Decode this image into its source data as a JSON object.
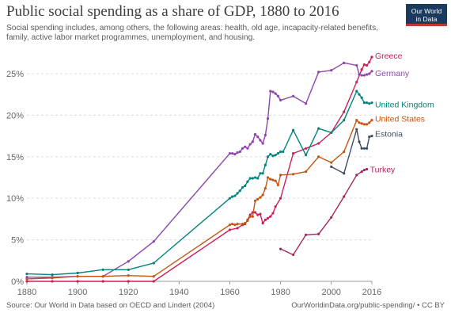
{
  "header": {
    "title": "Public social spending as a share of GDP, 1880 to 2016",
    "subtitle": "Social spending includes, among others, the following areas: health, old age, incapacity-related benefits, family, active labor market programmes, unemployment, and housing.",
    "logo_line1": "Our World",
    "logo_line2": "in Data"
  },
  "footer": {
    "source": "Source: Our World in Data based on OECD and Lindert (2004)",
    "license": "OurWorldinData.org/public-spending/ • CC BY"
  },
  "chart_data": {
    "type": "line",
    "title": "Public social spending as a share of GDP, 1880 to 2016",
    "xlabel": "",
    "ylabel": "",
    "xlim": [
      1880,
      2016
    ],
    "ylim": [
      0,
      27
    ],
    "x_ticks": [
      1880,
      1900,
      1920,
      1940,
      1960,
      1980,
      2000,
      2016
    ],
    "y_ticks": [
      0,
      5,
      10,
      15,
      20,
      25
    ],
    "y_tick_suffix": "%",
    "grid": "horizontal",
    "legend": "inline labels at line ends (right)",
    "series": [
      {
        "name": "Greece",
        "color": "#cc1f59",
        "points": [
          [
            1880,
            0
          ],
          [
            1890,
            0
          ],
          [
            1900,
            0
          ],
          [
            1910,
            0
          ],
          [
            1920,
            0
          ],
          [
            1930,
            0
          ],
          [
            1960,
            6.2
          ],
          [
            1963,
            6.4
          ],
          [
            1965,
            6.8
          ],
          [
            1966,
            6.9
          ],
          [
            1967,
            7.4
          ],
          [
            1968,
            8.0
          ],
          [
            1969,
            8.3
          ],
          [
            1970,
            8.3
          ],
          [
            1971,
            8.0
          ],
          [
            1972,
            8.1
          ],
          [
            1973,
            7.0
          ],
          [
            1974,
            7.4
          ],
          [
            1975,
            7.6
          ],
          [
            1976,
            7.8
          ],
          [
            1977,
            8.2
          ],
          [
            1978,
            9.0
          ],
          [
            1980,
            10.0
          ],
          [
            1985,
            15.4
          ],
          [
            1990,
            16.0
          ],
          [
            1995,
            16.6
          ],
          [
            2000,
            17.9
          ],
          [
            2005,
            20.4
          ],
          [
            2010,
            24.0
          ],
          [
            2012,
            25.5
          ],
          [
            2013,
            26.1
          ],
          [
            2014,
            26.0
          ],
          [
            2015,
            26.4
          ],
          [
            2016,
            27.0
          ]
        ]
      },
      {
        "name": "Germany",
        "color": "#8e44ad",
        "points": [
          [
            1880,
            0.5
          ],
          [
            1890,
            0.5
          ],
          [
            1900,
            0.6
          ],
          [
            1910,
            0.6
          ],
          [
            1920,
            2.4
          ],
          [
            1930,
            4.8
          ],
          [
            1960,
            15.4
          ],
          [
            1961,
            15.4
          ],
          [
            1962,
            15.3
          ],
          [
            1963,
            15.5
          ],
          [
            1964,
            15.6
          ],
          [
            1965,
            16.0
          ],
          [
            1966,
            16.2
          ],
          [
            1967,
            16.0
          ],
          [
            1968,
            16.5
          ],
          [
            1969,
            16.8
          ],
          [
            1970,
            17.7
          ],
          [
            1971,
            17.4
          ],
          [
            1972,
            17.0
          ],
          [
            1973,
            16.6
          ],
          [
            1974,
            17.6
          ],
          [
            1975,
            19.6
          ],
          [
            1976,
            22.9
          ],
          [
            1977,
            22.8
          ],
          [
            1978,
            22.6
          ],
          [
            1979,
            22.3
          ],
          [
            1980,
            21.8
          ],
          [
            1985,
            22.3
          ],
          [
            1990,
            21.4
          ],
          [
            1995,
            25.2
          ],
          [
            2000,
            25.4
          ],
          [
            2005,
            26.3
          ],
          [
            2010,
            26.0
          ],
          [
            2011,
            24.9
          ],
          [
            2012,
            24.8
          ],
          [
            2013,
            24.8
          ],
          [
            2014,
            24.9
          ],
          [
            2015,
            25.0
          ],
          [
            2016,
            25.3
          ]
        ]
      },
      {
        "name": "United Kingdom",
        "color": "#00847e",
        "points": [
          [
            1880,
            0.9
          ],
          [
            1890,
            0.8
          ],
          [
            1900,
            1.0
          ],
          [
            1910,
            1.4
          ],
          [
            1920,
            1.4
          ],
          [
            1930,
            2.2
          ],
          [
            1960,
            10.0
          ],
          [
            1961,
            10.2
          ],
          [
            1962,
            10.3
          ],
          [
            1963,
            10.6
          ],
          [
            1964,
            10.9
          ],
          [
            1965,
            11.3
          ],
          [
            1966,
            11.5
          ],
          [
            1967,
            12.0
          ],
          [
            1968,
            12.4
          ],
          [
            1969,
            12.4
          ],
          [
            1970,
            12.5
          ],
          [
            1971,
            12.4
          ],
          [
            1972,
            13.0
          ],
          [
            1973,
            13.0
          ],
          [
            1974,
            14.0
          ],
          [
            1975,
            15.0
          ],
          [
            1976,
            15.3
          ],
          [
            1977,
            15.1
          ],
          [
            1978,
            15.2
          ],
          [
            1979,
            15.4
          ],
          [
            1980,
            15.6
          ],
          [
            1981,
            15.6
          ],
          [
            1985,
            18.2
          ],
          [
            1990,
            15.2
          ],
          [
            1995,
            18.4
          ],
          [
            2000,
            17.9
          ],
          [
            2005,
            19.4
          ],
          [
            2010,
            22.9
          ],
          [
            2011,
            22.5
          ],
          [
            2012,
            22.1
          ],
          [
            2013,
            21.5
          ],
          [
            2014,
            21.5
          ],
          [
            2015,
            21.4
          ],
          [
            2016,
            21.5
          ]
        ]
      },
      {
        "name": "United States",
        "color": "#c15613",
        "points": [
          [
            1880,
            0.3
          ],
          [
            1890,
            0.4
          ],
          [
            1900,
            0.6
          ],
          [
            1910,
            0.6
          ],
          [
            1920,
            0.7
          ],
          [
            1930,
            0.6
          ],
          [
            1960,
            6.8
          ],
          [
            1961,
            6.9
          ],
          [
            1962,
            6.8
          ],
          [
            1963,
            6.9
          ],
          [
            1965,
            6.9
          ],
          [
            1966,
            7.0
          ],
          [
            1967,
            7.3
          ],
          [
            1968,
            7.8
          ],
          [
            1969,
            7.8
          ],
          [
            1970,
            9.7
          ],
          [
            1971,
            9.9
          ],
          [
            1972,
            10.1
          ],
          [
            1973,
            10.4
          ],
          [
            1974,
            11.2
          ],
          [
            1975,
            12.5
          ],
          [
            1976,
            12.3
          ],
          [
            1977,
            12.2
          ],
          [
            1978,
            12.1
          ],
          [
            1979,
            11.6
          ],
          [
            1980,
            12.8
          ],
          [
            1985,
            12.9
          ],
          [
            1990,
            13.2
          ],
          [
            1995,
            15.0
          ],
          [
            2000,
            14.3
          ],
          [
            2005,
            15.6
          ],
          [
            2010,
            19.4
          ],
          [
            2011,
            19.1
          ],
          [
            2012,
            19.0
          ],
          [
            2013,
            18.9
          ],
          [
            2014,
            18.9
          ],
          [
            2015,
            19.1
          ],
          [
            2016,
            19.4
          ]
        ]
      },
      {
        "name": "Estonia",
        "color": "#3c4e66",
        "points": [
          [
            2000,
            13.8
          ],
          [
            2005,
            13.0
          ],
          [
            2010,
            18.3
          ],
          [
            2011,
            16.8
          ],
          [
            2012,
            16.0
          ],
          [
            2013,
            16.0
          ],
          [
            2014,
            16.0
          ],
          [
            2015,
            17.4
          ],
          [
            2016,
            17.5
          ]
        ]
      },
      {
        "name": "Turkey",
        "color": "#a2285e",
        "points": [
          [
            1980,
            3.9
          ],
          [
            1985,
            3.2
          ],
          [
            1990,
            5.6
          ],
          [
            1995,
            5.7
          ],
          [
            2000,
            7.7
          ],
          [
            2005,
            10.2
          ],
          [
            2010,
            12.8
          ],
          [
            2012,
            13.2
          ],
          [
            2013,
            13.4
          ],
          [
            2014,
            13.5
          ]
        ]
      }
    ]
  }
}
